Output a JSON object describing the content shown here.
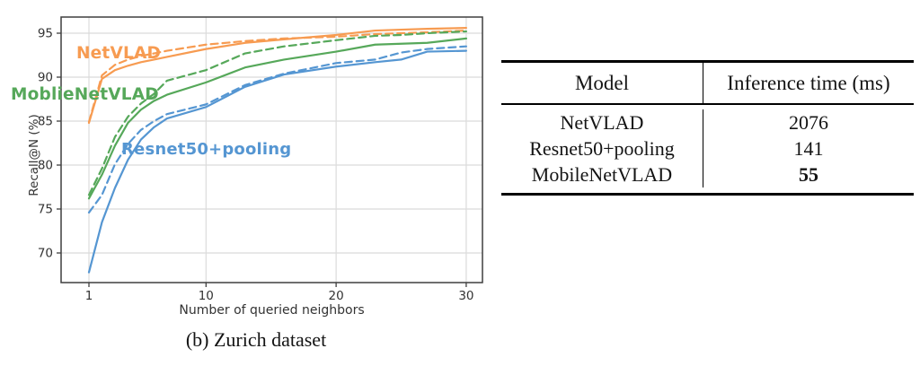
{
  "figure": {
    "caption": "(b) Zurich dataset"
  },
  "chart_data": {
    "type": "line",
    "title": "",
    "xlabel": "Number of queried neighbors",
    "ylabel": "Recall@N (%)",
    "xlim": [
      -1.1,
      31.3
    ],
    "ylim": [
      66.6,
      96.8
    ],
    "xticks": [
      1,
      10,
      20,
      30
    ],
    "yticks": [
      70,
      75,
      80,
      85,
      90,
      95
    ],
    "grid": true,
    "legend_position": "inline-labels",
    "x": [
      1,
      2,
      3,
      4,
      5,
      6,
      7,
      10,
      13,
      16,
      20,
      23,
      25,
      27,
      30
    ],
    "series": [
      {
        "name": "NetVLAD",
        "line": "solid",
        "color": "#F79B51",
        "values": [
          84.8,
          89.8,
          90.8,
          91.3,
          91.7,
          92.0,
          92.3,
          93.2,
          93.9,
          94.3,
          94.8,
          95.3,
          95.4,
          95.5,
          95.6
        ]
      },
      {
        "name": "NetVLAD",
        "line": "dashed",
        "color": "#F79B51",
        "values": [
          84.9,
          90.2,
          91.4,
          92.0,
          92.4,
          92.7,
          93.0,
          93.7,
          94.1,
          94.4,
          94.6,
          94.9,
          95.0,
          95.1,
          95.3
        ]
      },
      {
        "name": "MoblieNetVLAD",
        "line": "solid",
        "color": "#56A85A",
        "values": [
          76.2,
          78.9,
          82.2,
          84.8,
          86.3,
          87.3,
          88.0,
          89.4,
          91.1,
          92.0,
          92.9,
          93.7,
          93.8,
          93.9,
          94.4
        ]
      },
      {
        "name": "MoblieNetVLAD",
        "line": "dashed",
        "color": "#56A85A",
        "values": [
          76.6,
          79.6,
          83.2,
          85.5,
          87.0,
          88.1,
          89.6,
          90.8,
          92.7,
          93.5,
          94.2,
          94.7,
          94.8,
          95.0,
          95.2
        ]
      },
      {
        "name": "Resnet50+pooling",
        "line": "solid",
        "color": "#5596D2",
        "values": [
          67.8,
          73.5,
          77.4,
          80.6,
          82.9,
          84.3,
          85.3,
          86.6,
          88.9,
          90.3,
          91.2,
          91.7,
          92.0,
          92.9,
          93.0
        ]
      },
      {
        "name": "Resnet50+pooling",
        "line": "dashed",
        "color": "#5596D2",
        "values": [
          74.6,
          76.6,
          80.1,
          82.4,
          84.0,
          85.0,
          85.8,
          86.9,
          89.1,
          90.4,
          91.6,
          92.0,
          92.8,
          93.2,
          93.5
        ]
      }
    ],
    "labels": [
      {
        "text": "NetVLAD",
        "color": "#F79B51"
      },
      {
        "text": "MoblieNetVLAD",
        "color": "#56A85A"
      },
      {
        "text": "Resnet50+pooling",
        "color": "#5596D2"
      }
    ]
  },
  "table": {
    "headers": [
      "Model",
      "Inference time (ms)"
    ],
    "rows": [
      {
        "model": "NetVLAD",
        "time": "2076",
        "bold": false
      },
      {
        "model": "Resnet50+pooling",
        "time": "141",
        "bold": false
      },
      {
        "model": "MobileNetVLAD",
        "time": "55",
        "bold": true
      }
    ]
  }
}
